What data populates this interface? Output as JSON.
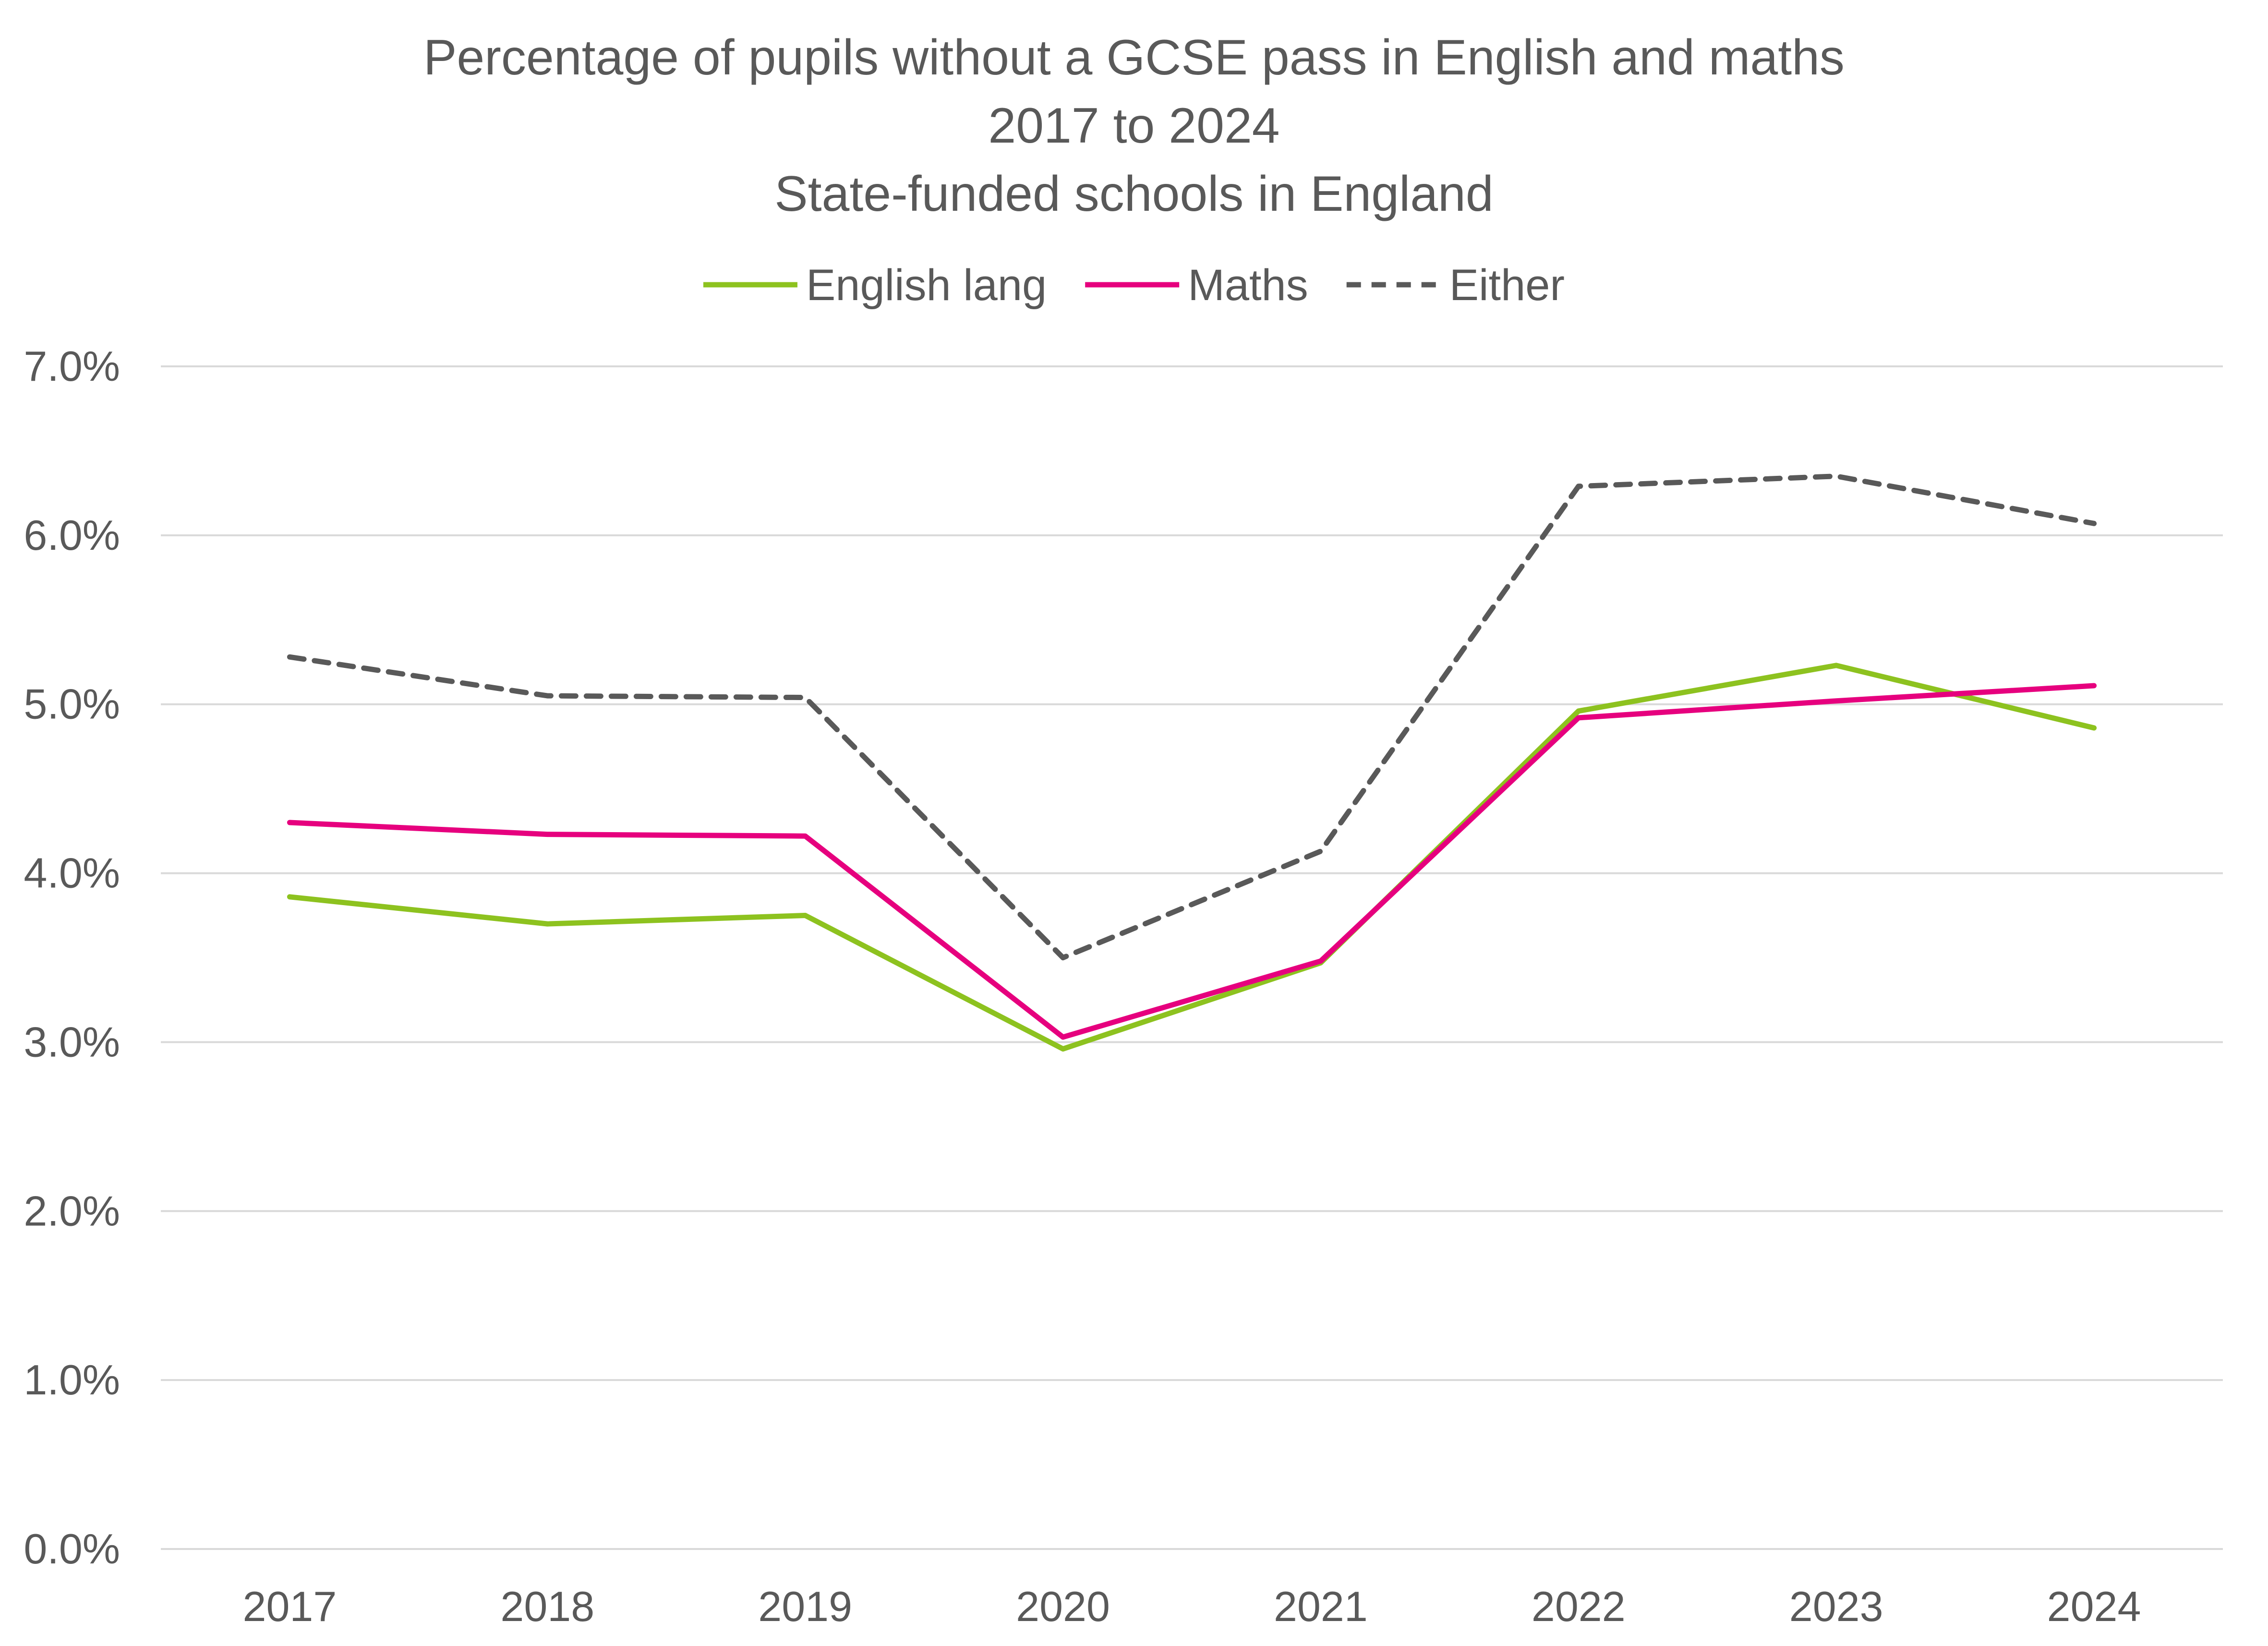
{
  "chart_data": {
    "type": "line",
    "title": [
      "Percentage of pupils without a GCSE pass in English and maths",
      "2017 to 2024",
      "State-funded schools in England"
    ],
    "categories": [
      "2017",
      "2018",
      "2019",
      "2020",
      "2021",
      "2022",
      "2023",
      "2024"
    ],
    "series": [
      {
        "name": "English lang",
        "color": "#8dc21f",
        "dash": "solid",
        "values": [
          3.86,
          3.7,
          3.75,
          2.96,
          3.47,
          4.96,
          5.23,
          4.86
        ]
      },
      {
        "name": "Maths",
        "color": "#e6007e",
        "dash": "solid",
        "values": [
          4.3,
          4.23,
          4.22,
          3.03,
          3.48,
          4.92,
          5.02,
          5.11
        ]
      },
      {
        "name": "Either",
        "color": "#595959",
        "dash": "dashed",
        "values": [
          5.28,
          5.05,
          5.04,
          3.5,
          4.13,
          6.29,
          6.35,
          6.07
        ]
      }
    ],
    "ylim": [
      0,
      7
    ],
    "yticks": [
      {
        "value": 0,
        "label": "0.0%"
      },
      {
        "value": 1,
        "label": "1.0%"
      },
      {
        "value": 2,
        "label": "2.0%"
      },
      {
        "value": 3,
        "label": "3.0%"
      },
      {
        "value": 4,
        "label": "4.0%"
      },
      {
        "value": 5,
        "label": "5.0%"
      },
      {
        "value": 6,
        "label": "6.0%"
      },
      {
        "value": 7,
        "label": "7.0%"
      }
    ],
    "xlabel": "",
    "ylabel": "",
    "grid": "horizontal",
    "legend_position": "top-center"
  }
}
